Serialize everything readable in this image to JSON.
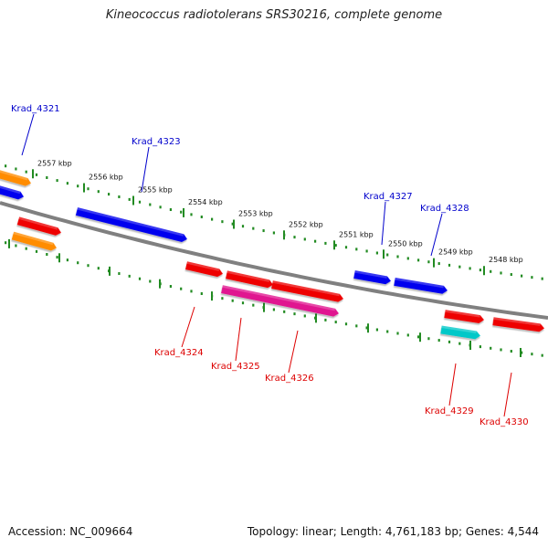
{
  "title": "Kineococcus radiotolerans SRS30216, complete genome",
  "footer": {
    "accession": "Accession: NC_009664",
    "stats": "Topology: linear; Length: 4,761,183 bp; Genes: 4,544"
  },
  "colors": {
    "backbone": "#808080",
    "tick": "#228B22",
    "label_top": "#0000CC",
    "label_bottom": "#DD0000",
    "blue": "#0000EE",
    "red": "#EE0000",
    "orange": "#FF8C00",
    "magenta": "#E01690",
    "cyan": "#00C8C8"
  },
  "scale_labels": [
    "2557 kbp",
    "2556 kbp",
    "2555 kbp",
    "2554 kbp",
    "2553 kbp",
    "2552 kbp",
    "2551 kbp",
    "2550 kbp",
    "2549 kbp",
    "2548 kbp"
  ],
  "gene_labels": [
    {
      "id": "Krad_4321",
      "side": "top"
    },
    {
      "id": "Krad_4323",
      "side": "top"
    },
    {
      "id": "Krad_4327",
      "side": "top"
    },
    {
      "id": "Krad_4328",
      "side": "top"
    },
    {
      "id": "Krad_4324",
      "side": "bottom"
    },
    {
      "id": "Krad_4325",
      "side": "bottom"
    },
    {
      "id": "Krad_4326",
      "side": "bottom"
    },
    {
      "id": "Krad_4329",
      "side": "bottom"
    },
    {
      "id": "Krad_4330",
      "side": "bottom"
    }
  ]
}
